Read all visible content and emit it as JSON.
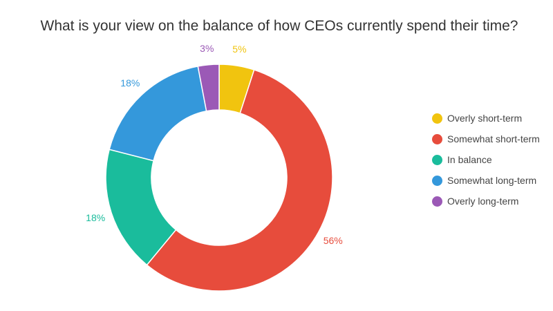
{
  "title": "What is your view on the balance of how CEOs currently spend their time?",
  "chart_data": {
    "type": "pie",
    "subtype": "donut",
    "title": "What is your view on the balance of how CEOs currently spend their time?",
    "categories": [
      "Overly short-term",
      "Somewhat short-term",
      "In balance",
      "Somewhat long-term",
      "Overly long-term"
    ],
    "values": [
      5,
      56,
      18,
      18,
      3
    ],
    "labels": [
      "5%",
      "56%",
      "18%",
      "18%",
      "3%"
    ],
    "colors": [
      "#f1c40f",
      "#e74c3c",
      "#1abc9c",
      "#3498db",
      "#9b59b6"
    ],
    "unit": "%",
    "legend_position": "right",
    "start_angle": "12 o'clock, clockwise"
  },
  "legend": {
    "items": [
      {
        "label": "Overly short-term",
        "color": "#f1c40f"
      },
      {
        "label": "Somewhat short-term",
        "color": "#e74c3c"
      },
      {
        "label": "In balance",
        "color": "#1abc9c"
      },
      {
        "label": "Somewhat long-term",
        "color": "#3498db"
      },
      {
        "label": "Overly long-term",
        "color": "#9b59b6"
      }
    ]
  }
}
